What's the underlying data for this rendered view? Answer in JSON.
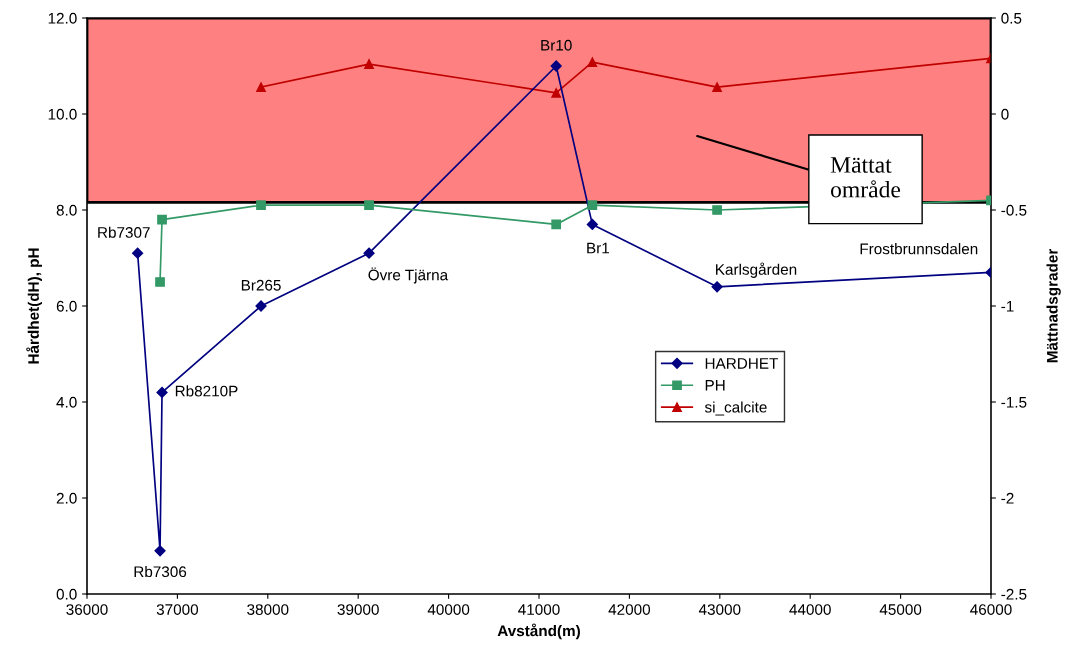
{
  "chart_data": {
    "type": "line",
    "xlabel": "Avstånd(m)",
    "ylabel": "Hårdhet(dH), pH",
    "y2label": "Mättnadsgrader",
    "xlim": [
      36000,
      46000
    ],
    "xticks": [
      36000,
      37000,
      38000,
      39000,
      40000,
      41000,
      42000,
      43000,
      44000,
      45000,
      46000
    ],
    "ylim": [
      0,
      12
    ],
    "yticks": [
      {
        "value": 0,
        "label": "0.0"
      },
      {
        "value": 2,
        "label": "2.0"
      },
      {
        "value": 4,
        "label": "4.0"
      },
      {
        "value": 6,
        "label": "6.0"
      },
      {
        "value": 8,
        "label": "8.0"
      },
      {
        "value": 10,
        "label": "10.0"
      },
      {
        "value": 12,
        "label": "12.0"
      }
    ],
    "y2lim": [
      -2.5,
      0.5
    ],
    "y2ticks": [
      -2.5,
      -2,
      -1.5,
      -1,
      -0.5,
      0,
      0.5
    ],
    "grid": false,
    "legend": "center right",
    "line_style": "solid",
    "series": [
      {
        "name": "HARDHET",
        "color": "#000080",
        "marker": "diamond",
        "x": [
          36560,
          36808,
          36830,
          37925,
          39120,
          41190,
          41590,
          42970,
          46000
        ],
        "values": [
          7.1,
          0.9,
          4.2,
          6.0,
          7.1,
          11.0,
          7.7,
          6.4,
          6.7
        ]
      },
      {
        "name": "PH",
        "color": "#339966",
        "marker": "square",
        "x": [
          36808,
          36830,
          37925,
          39120,
          41190,
          41590,
          42970,
          46000
        ],
        "values": [
          6.5,
          7.8,
          8.1,
          8.1,
          7.7,
          8.1,
          8.0,
          8.2
        ]
      },
      {
        "name": "si_calcite",
        "color": "#c00000",
        "marker": "triangle",
        "axis": "y2",
        "x": [
          37925,
          39120,
          41190,
          41590,
          42970,
          46000
        ],
        "values": [
          0.14,
          0.26,
          0.11,
          0.27,
          0.14,
          0.29
        ]
      }
    ],
    "bands": [
      {
        "axis": "y2",
        "from": -0.46,
        "to": 0.5,
        "color": "#ff8080"
      }
    ],
    "annotations": [
      {
        "text": "Rb7307",
        "x": 36560,
        "y": 7.1
      },
      {
        "text": "Rb7306",
        "x": 36808,
        "y": 0.9
      },
      {
        "text": "Rb8210P",
        "x": 36830,
        "y": 4.2
      },
      {
        "text": "Br265",
        "x": 37925,
        "y": 6.0
      },
      {
        "text": "Övre Tjärna",
        "x": 39120,
        "y": 7.1
      },
      {
        "text": "Br10",
        "x": 41190,
        "y": 11.0
      },
      {
        "text": "Br1",
        "x": 41590,
        "y": 7.7
      },
      {
        "text": "Karlsgården",
        "x": 42970,
        "y": 6.4
      },
      {
        "text": "Frostbrunnsdalen",
        "x": 46000,
        "y": 6.7
      },
      "Mättat\nområde"
    ]
  }
}
